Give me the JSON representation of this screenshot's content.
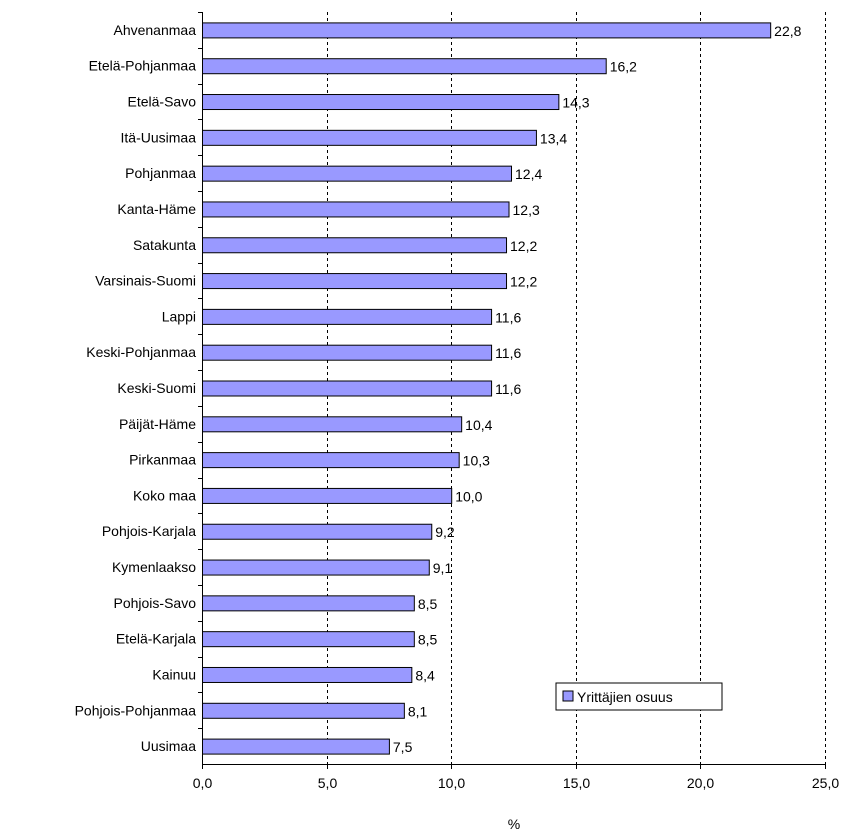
{
  "chart_data": {
    "type": "bar",
    "orientation": "horizontal",
    "categories": [
      "Ahvenanmaa",
      "Etelä-Pohjanmaa",
      "Etelä-Savo",
      "Itä-Uusimaa",
      "Pohjanmaa",
      "Kanta-Häme",
      "Satakunta",
      "Varsinais-Suomi",
      "Lappi",
      "Keski-Pohjanmaa",
      "Keski-Suomi",
      "Päijät-Häme",
      "Pirkanmaa",
      "Koko maa",
      "Pohjois-Karjala",
      "Kymenlaakso",
      "Pohjois-Savo",
      "Etelä-Karjala",
      "Kainuu",
      "Pohjois-Pohjanmaa",
      "Uusimaa"
    ],
    "series": [
      {
        "name": "Yrittäjien osuus",
        "values": [
          22.8,
          16.2,
          14.3,
          13.4,
          12.4,
          12.3,
          12.2,
          12.2,
          11.6,
          11.6,
          11.6,
          10.4,
          10.3,
          10.0,
          9.2,
          9.1,
          8.5,
          8.5,
          8.4,
          8.1,
          7.5
        ],
        "value_labels": [
          "22,8",
          "16,2",
          "14,3",
          "13,4",
          "12,4",
          "12,3",
          "12,2",
          "12,2",
          "11,6",
          "11,6",
          "11,6",
          "10,4",
          "10,3",
          "10,0",
          "9,2",
          "9,1",
          "8,5",
          "8,5",
          "8,4",
          "8,1",
          "7,5"
        ]
      }
    ],
    "xlabel": "%",
    "xlim": [
      0,
      25
    ],
    "xticks": [
      0,
      5,
      10,
      15,
      20,
      25
    ],
    "xtick_labels": [
      "0,0",
      "5,0",
      "10,0",
      "15,0",
      "20,0",
      "25,0"
    ],
    "grid": "vertical dashed",
    "legend": "bottom-right",
    "colors": {
      "bar_fill": "#9999ff",
      "bar_stroke": "#000000",
      "grid": "#000000"
    }
  }
}
